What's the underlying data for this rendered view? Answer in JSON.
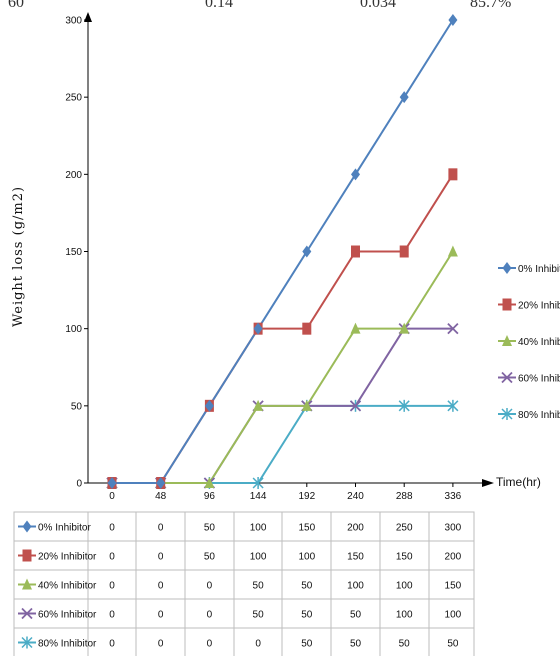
{
  "top_table_fragment": [
    "60",
    "0.14",
    "0.034",
    "85.7%"
  ],
  "chart_data": {
    "type": "line",
    "title": "",
    "xlabel": "Time(hr)",
    "ylabel": "Weight loss (g/m2)",
    "ylim": [
      0,
      300
    ],
    "yticks": [
      0,
      50,
      100,
      150,
      200,
      250,
      300
    ],
    "categories": [
      "0",
      "48",
      "96",
      "144",
      "192",
      "240",
      "288",
      "336"
    ],
    "legend_position": "right",
    "series": [
      {
        "name": "0% Inhibitor",
        "color": "#4f81bd",
        "marker": "diamond",
        "values": [
          0,
          0,
          50,
          100,
          150,
          200,
          250,
          300
        ]
      },
      {
        "name": "20% Inhibitor",
        "color": "#c0504d",
        "marker": "square",
        "values": [
          0,
          0,
          50,
          100,
          100,
          150,
          150,
          200
        ]
      },
      {
        "name": "40% Inhibitor",
        "color": "#9bbb59",
        "marker": "triangle",
        "values": [
          0,
          0,
          0,
          50,
          50,
          100,
          100,
          150
        ]
      },
      {
        "name": "60% Inhibitor",
        "color": "#8064a2",
        "marker": "x",
        "values": [
          0,
          0,
          0,
          50,
          50,
          50,
          100,
          100
        ]
      },
      {
        "name": "80% Inhibitor",
        "color": "#4bacc6",
        "marker": "star",
        "values": [
          0,
          0,
          0,
          0,
          50,
          50,
          50,
          50
        ]
      }
    ]
  }
}
